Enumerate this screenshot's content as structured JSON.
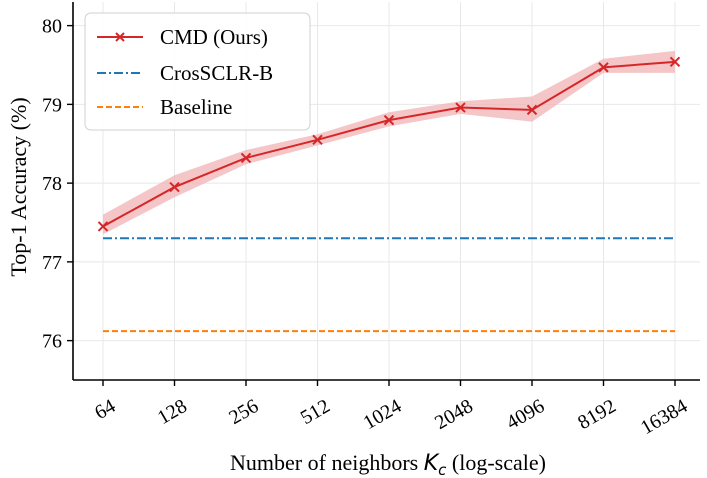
{
  "chart_data": {
    "type": "line",
    "title": "",
    "xlabel_prefix": "Number of neighbors ",
    "xlabel_var": "K",
    "xlabel_sub": "c",
    "xlabel_suffix": " (log-scale)",
    "ylabel": "Top-1 Accuracy (%)",
    "x_scale": "log2",
    "categories": [
      "64",
      "128",
      "256",
      "512",
      "1024",
      "2048",
      "4096",
      "8192",
      "16384"
    ],
    "ylim": [
      75.5,
      80.3
    ],
    "yticks": [
      76,
      77,
      78,
      79,
      80
    ],
    "grid": true,
    "legend_position": "top-left",
    "colors": {
      "cmd": "#d62728",
      "cmd_band": "#f2b3b4",
      "crossclr": "#1f77b4",
      "baseline": "#ff7f0e"
    },
    "series": [
      {
        "name": "CMD (Ours)",
        "style": "solid-x-marker",
        "values": [
          77.45,
          77.95,
          78.32,
          78.55,
          78.8,
          78.96,
          78.93,
          79.47,
          79.54
        ],
        "upper": [
          77.6,
          78.1,
          78.42,
          78.62,
          78.9,
          79.04,
          79.1,
          79.58,
          79.68
        ],
        "lower": [
          77.35,
          77.82,
          78.24,
          78.48,
          78.72,
          78.88,
          78.78,
          79.4,
          79.4
        ]
      },
      {
        "name": "CrosSCLR-B",
        "style": "dash-dot",
        "values": [
          77.3,
          77.3,
          77.3,
          77.3,
          77.3,
          77.3,
          77.3,
          77.3,
          77.3
        ]
      },
      {
        "name": "Baseline",
        "style": "dashed",
        "values": [
          76.12,
          76.12,
          76.12,
          76.12,
          76.12,
          76.12,
          76.12,
          76.12,
          76.12
        ]
      }
    ]
  }
}
